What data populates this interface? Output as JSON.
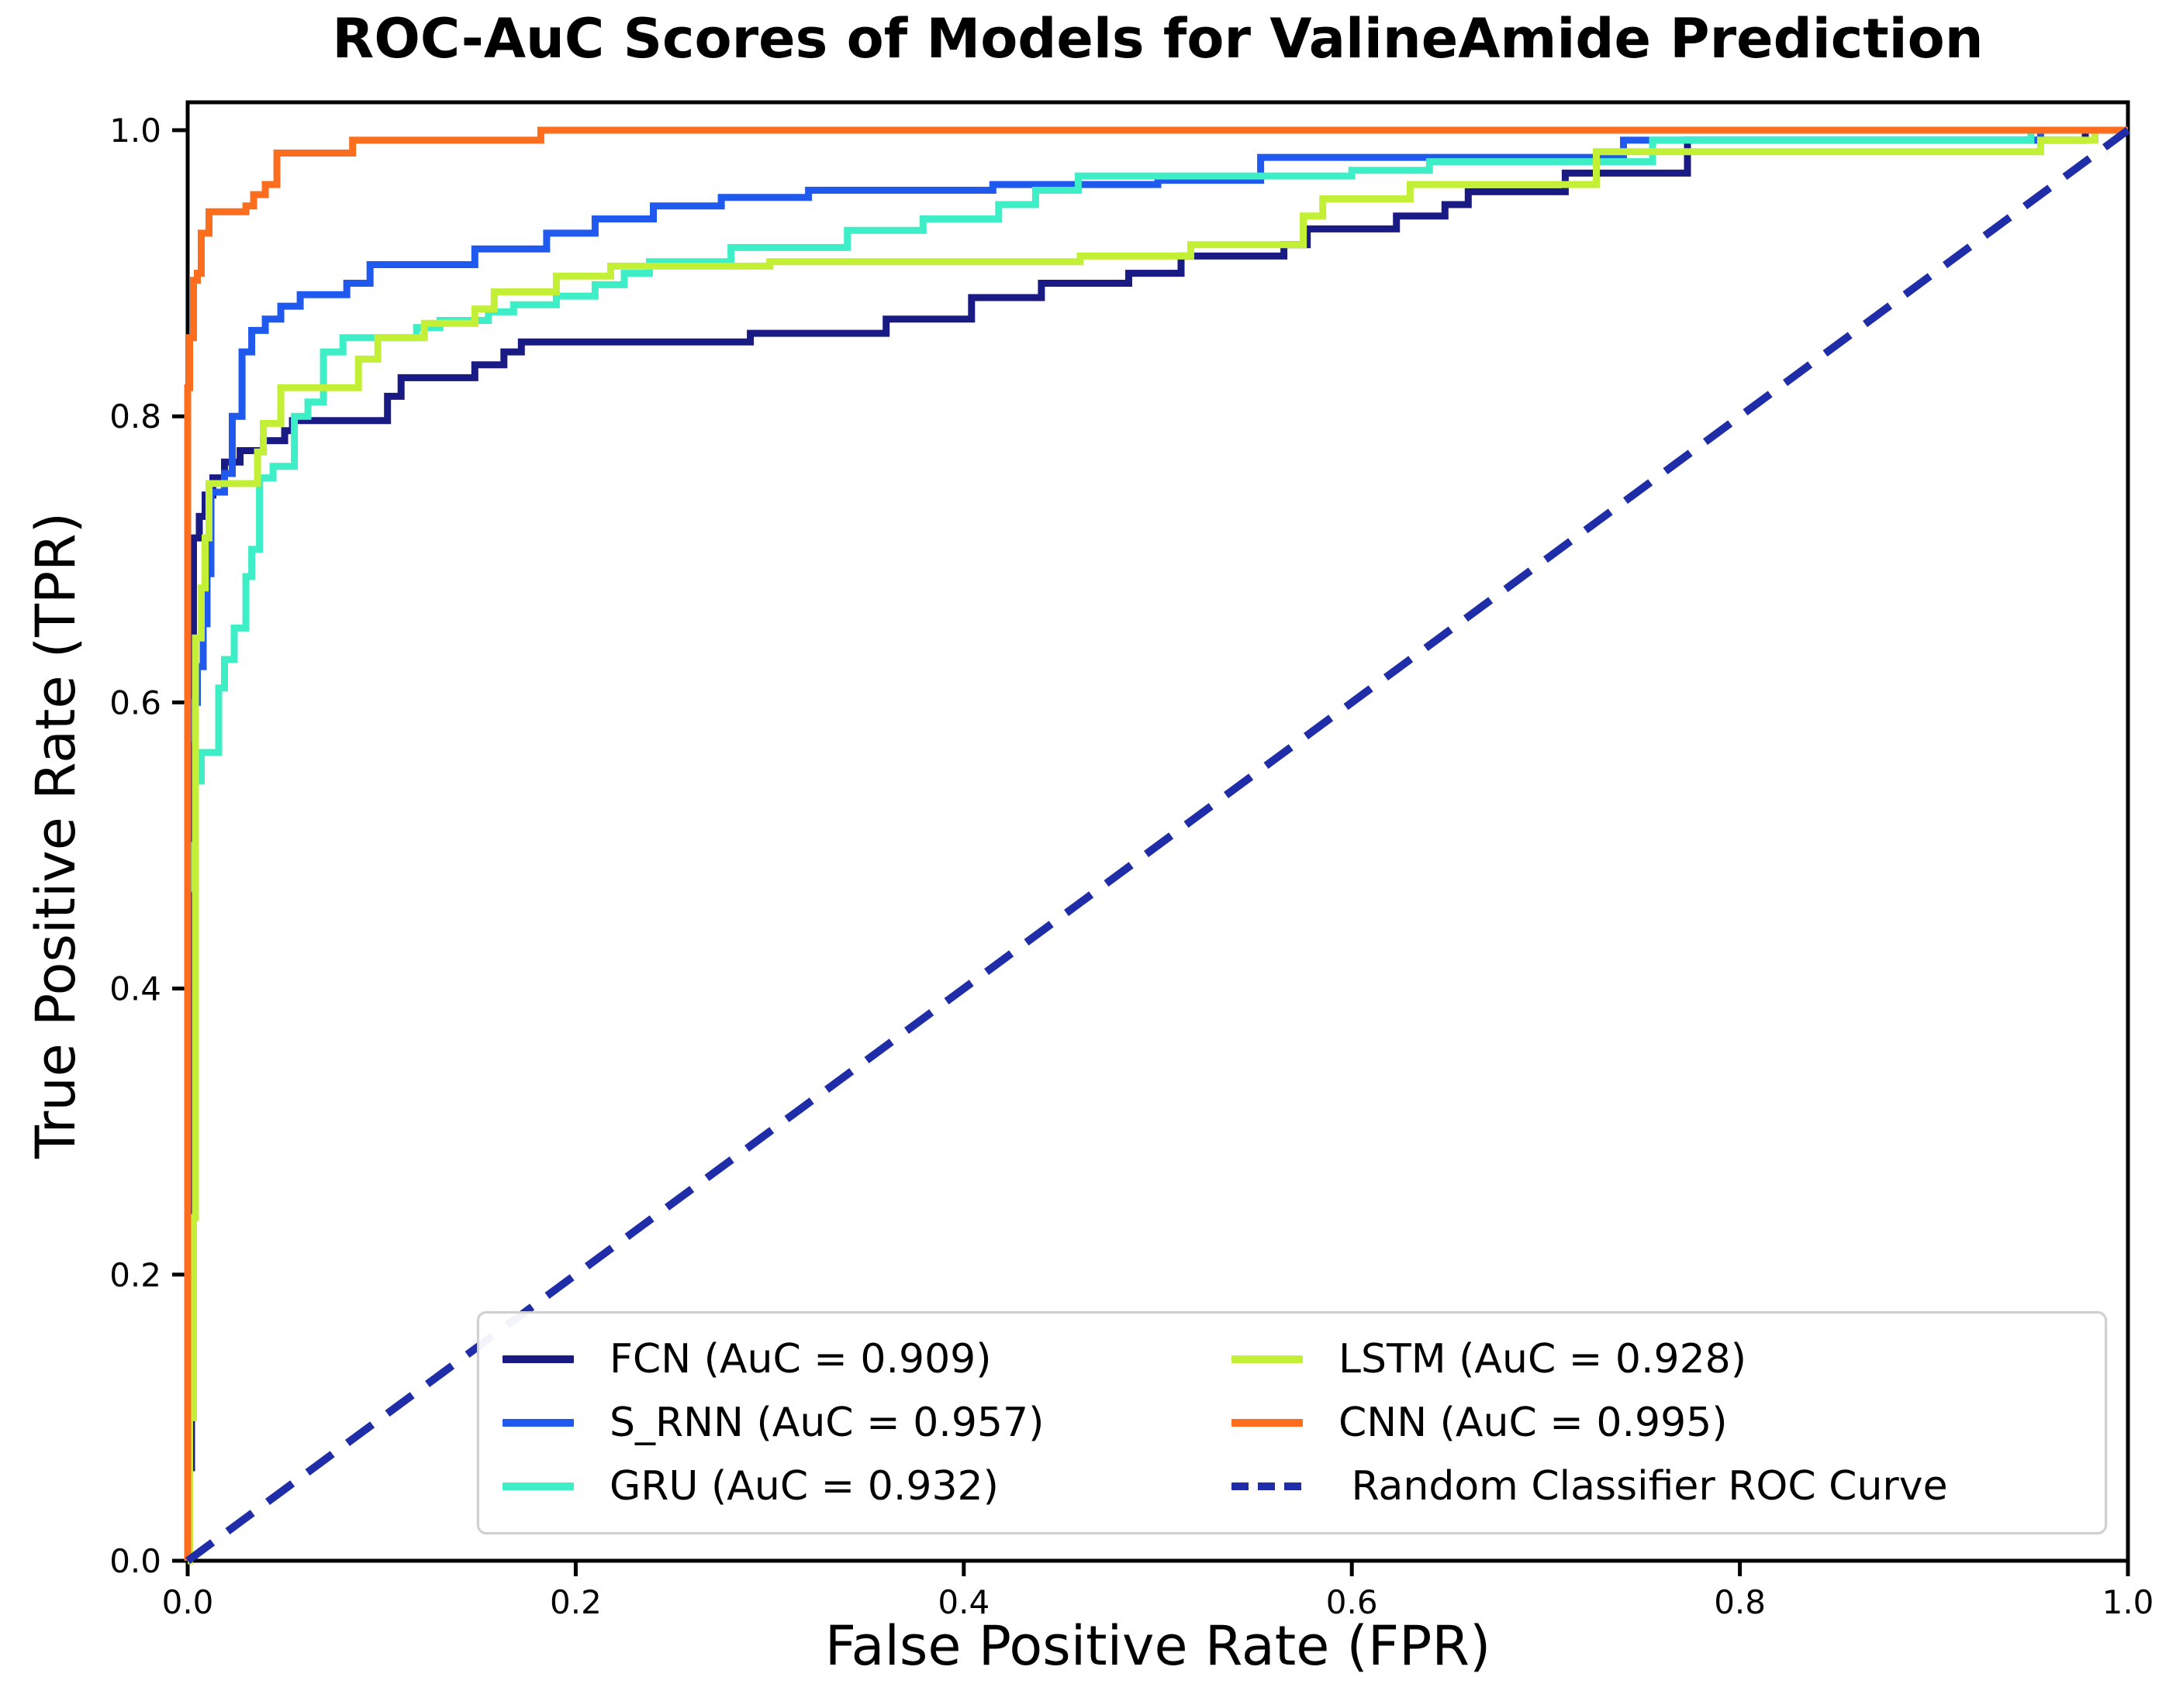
{
  "title": "ROC-AuC Scores of Models for ValineAmide Prediction",
  "axes": {
    "x_label": "False Positive Rate (FPR)",
    "y_label": "True Positive Rate (TPR)",
    "x_ticks": [
      "0.0",
      "0.2",
      "0.4",
      "0.6",
      "0.8",
      "1.0"
    ],
    "y_ticks": [
      "0.0",
      "0.2",
      "0.4",
      "0.6",
      "0.8",
      "1.0"
    ]
  },
  "chart_data": {
    "type": "line",
    "subtype": "roc-curves",
    "title": "ROC-AuC Scores of Models for ValineAmide Prediction",
    "xlabel": "False Positive Rate (FPR)",
    "ylabel": "True Positive Rate (TPR)",
    "xlim": [
      0,
      1
    ],
    "ylim": [
      0,
      1.02
    ],
    "grid": false,
    "legend_position": "lower right, two columns",
    "series": [
      {
        "name": "FCN",
        "auc": 0.909,
        "label": "FCN (AuC = 0.909)",
        "color": "#1a1a85",
        "dashed": false,
        "points": [
          [
            0,
            0
          ],
          [
            0,
            0.065
          ],
          [
            0.002,
            0.065
          ],
          [
            0.002,
            0.575
          ],
          [
            0.003,
            0.575
          ],
          [
            0.003,
            0.715
          ],
          [
            0.006,
            0.715
          ],
          [
            0.006,
            0.73
          ],
          [
            0.009,
            0.73
          ],
          [
            0.009,
            0.745
          ],
          [
            0.013,
            0.745
          ],
          [
            0.013,
            0.757
          ],
          [
            0.019,
            0.757
          ],
          [
            0.019,
            0.768
          ],
          [
            0.027,
            0.768
          ],
          [
            0.027,
            0.776
          ],
          [
            0.039,
            0.776
          ],
          [
            0.039,
            0.783
          ],
          [
            0.05,
            0.783
          ],
          [
            0.05,
            0.79
          ],
          [
            0.054,
            0.79
          ],
          [
            0.054,
            0.797
          ],
          [
            0.103,
            0.797
          ],
          [
            0.103,
            0.814
          ],
          [
            0.11,
            0.814
          ],
          [
            0.11,
            0.827
          ],
          [
            0.148,
            0.827
          ],
          [
            0.148,
            0.836
          ],
          [
            0.163,
            0.836
          ],
          [
            0.163,
            0.845
          ],
          [
            0.172,
            0.845
          ],
          [
            0.172,
            0.852
          ],
          [
            0.29,
            0.852
          ],
          [
            0.29,
            0.858
          ],
          [
            0.36,
            0.858
          ],
          [
            0.36,
            0.868
          ],
          [
            0.404,
            0.868
          ],
          [
            0.404,
            0.883
          ],
          [
            0.44,
            0.883
          ],
          [
            0.44,
            0.893
          ],
          [
            0.485,
            0.893
          ],
          [
            0.485,
            0.9
          ],
          [
            0.512,
            0.9
          ],
          [
            0.512,
            0.912
          ],
          [
            0.565,
            0.912
          ],
          [
            0.565,
            0.92
          ],
          [
            0.577,
            0.92
          ],
          [
            0.577,
            0.931
          ],
          [
            0.623,
            0.931
          ],
          [
            0.623,
            0.94
          ],
          [
            0.648,
            0.94
          ],
          [
            0.648,
            0.948
          ],
          [
            0.66,
            0.948
          ],
          [
            0.66,
            0.957
          ],
          [
            0.71,
            0.957
          ],
          [
            0.71,
            0.97
          ],
          [
            0.773,
            0.97
          ],
          [
            0.773,
            0.993
          ],
          [
            0.978,
            0.993
          ],
          [
            0.978,
            1
          ],
          [
            1,
            1
          ]
        ]
      },
      {
        "name": "S_RNN",
        "auc": 0.957,
        "label": "S_RNN (AuC = 0.957)",
        "color": "#2059ee",
        "dashed": false,
        "points": [
          [
            0,
            0
          ],
          [
            0,
            0.575
          ],
          [
            0.003,
            0.575
          ],
          [
            0.003,
            0.6
          ],
          [
            0.005,
            0.6
          ],
          [
            0.005,
            0.625
          ],
          [
            0.008,
            0.625
          ],
          [
            0.008,
            0.655
          ],
          [
            0.01,
            0.655
          ],
          [
            0.01,
            0.69
          ],
          [
            0.012,
            0.69
          ],
          [
            0.012,
            0.747
          ],
          [
            0.019,
            0.747
          ],
          [
            0.019,
            0.76
          ],
          [
            0.023,
            0.76
          ],
          [
            0.023,
            0.8
          ],
          [
            0.028,
            0.8
          ],
          [
            0.028,
            0.845
          ],
          [
            0.033,
            0.845
          ],
          [
            0.033,
            0.86
          ],
          [
            0.04,
            0.86
          ],
          [
            0.04,
            0.868
          ],
          [
            0.048,
            0.868
          ],
          [
            0.048,
            0.877
          ],
          [
            0.058,
            0.877
          ],
          [
            0.058,
            0.885
          ],
          [
            0.082,
            0.885
          ],
          [
            0.082,
            0.893
          ],
          [
            0.094,
            0.893
          ],
          [
            0.094,
            0.906
          ],
          [
            0.148,
            0.906
          ],
          [
            0.148,
            0.917
          ],
          [
            0.185,
            0.917
          ],
          [
            0.185,
            0.928
          ],
          [
            0.21,
            0.928
          ],
          [
            0.21,
            0.938
          ],
          [
            0.24,
            0.938
          ],
          [
            0.24,
            0.947
          ],
          [
            0.275,
            0.947
          ],
          [
            0.275,
            0.953
          ],
          [
            0.32,
            0.953
          ],
          [
            0.32,
            0.958
          ],
          [
            0.415,
            0.958
          ],
          [
            0.415,
            0.962
          ],
          [
            0.5,
            0.962
          ],
          [
            0.5,
            0.965
          ],
          [
            0.553,
            0.965
          ],
          [
            0.553,
            0.981
          ],
          [
            0.74,
            0.981
          ],
          [
            0.74,
            0.993
          ],
          [
            0.955,
            0.993
          ],
          [
            0.955,
            1
          ],
          [
            1,
            1
          ]
        ]
      },
      {
        "name": "GRU",
        "auc": 0.932,
        "label": "GRU (AuC = 0.932)",
        "color": "#3eeec6",
        "dashed": false,
        "points": [
          [
            0,
            0
          ],
          [
            0,
            0.47
          ],
          [
            0.002,
            0.47
          ],
          [
            0.002,
            0.5
          ],
          [
            0.004,
            0.5
          ],
          [
            0.004,
            0.545
          ],
          [
            0.007,
            0.545
          ],
          [
            0.007,
            0.565
          ],
          [
            0.016,
            0.565
          ],
          [
            0.016,
            0.61
          ],
          [
            0.019,
            0.61
          ],
          [
            0.019,
            0.63
          ],
          [
            0.024,
            0.63
          ],
          [
            0.024,
            0.652
          ],
          [
            0.03,
            0.652
          ],
          [
            0.03,
            0.688
          ],
          [
            0.033,
            0.688
          ],
          [
            0.033,
            0.707
          ],
          [
            0.037,
            0.707
          ],
          [
            0.037,
            0.757
          ],
          [
            0.044,
            0.757
          ],
          [
            0.044,
            0.765
          ],
          [
            0.055,
            0.765
          ],
          [
            0.055,
            0.8
          ],
          [
            0.062,
            0.8
          ],
          [
            0.062,
            0.81
          ],
          [
            0.07,
            0.81
          ],
          [
            0.07,
            0.845
          ],
          [
            0.08,
            0.845
          ],
          [
            0.08,
            0.855
          ],
          [
            0.118,
            0.855
          ],
          [
            0.118,
            0.862
          ],
          [
            0.13,
            0.862
          ],
          [
            0.13,
            0.867
          ],
          [
            0.155,
            0.867
          ],
          [
            0.155,
            0.873
          ],
          [
            0.168,
            0.873
          ],
          [
            0.168,
            0.878
          ],
          [
            0.19,
            0.878
          ],
          [
            0.19,
            0.884
          ],
          [
            0.21,
            0.884
          ],
          [
            0.21,
            0.892
          ],
          [
            0.225,
            0.892
          ],
          [
            0.225,
            0.9
          ],
          [
            0.238,
            0.9
          ],
          [
            0.238,
            0.908
          ],
          [
            0.28,
            0.908
          ],
          [
            0.28,
            0.918
          ],
          [
            0.34,
            0.918
          ],
          [
            0.34,
            0.93
          ],
          [
            0.379,
            0.93
          ],
          [
            0.379,
            0.938
          ],
          [
            0.418,
            0.938
          ],
          [
            0.418,
            0.948
          ],
          [
            0.437,
            0.948
          ],
          [
            0.437,
            0.958
          ],
          [
            0.459,
            0.958
          ],
          [
            0.459,
            0.968
          ],
          [
            0.6,
            0.968
          ],
          [
            0.6,
            0.972
          ],
          [
            0.64,
            0.972
          ],
          [
            0.64,
            0.978
          ],
          [
            0.755,
            0.978
          ],
          [
            0.755,
            0.993
          ],
          [
            0.95,
            0.993
          ],
          [
            0.95,
            1
          ],
          [
            1,
            1
          ]
        ]
      },
      {
        "name": "LSTM",
        "auc": 0.928,
        "label": "LSTM (AuC = 0.928)",
        "color": "#c3ef36",
        "dashed": false,
        "points": [
          [
            0,
            0
          ],
          [
            0.001,
            0
          ],
          [
            0.001,
            0.1
          ],
          [
            0.003,
            0.1
          ],
          [
            0.003,
            0.24
          ],
          [
            0.004,
            0.24
          ],
          [
            0.004,
            0.645
          ],
          [
            0.007,
            0.645
          ],
          [
            0.007,
            0.68
          ],
          [
            0.009,
            0.68
          ],
          [
            0.009,
            0.715
          ],
          [
            0.011,
            0.715
          ],
          [
            0.011,
            0.753
          ],
          [
            0.036,
            0.753
          ],
          [
            0.036,
            0.775
          ],
          [
            0.039,
            0.775
          ],
          [
            0.039,
            0.795
          ],
          [
            0.048,
            0.795
          ],
          [
            0.048,
            0.82
          ],
          [
            0.088,
            0.82
          ],
          [
            0.088,
            0.84
          ],
          [
            0.098,
            0.84
          ],
          [
            0.098,
            0.855
          ],
          [
            0.122,
            0.855
          ],
          [
            0.122,
            0.865
          ],
          [
            0.148,
            0.865
          ],
          [
            0.148,
            0.875
          ],
          [
            0.158,
            0.875
          ],
          [
            0.158,
            0.887
          ],
          [
            0.19,
            0.887
          ],
          [
            0.19,
            0.898
          ],
          [
            0.218,
            0.898
          ],
          [
            0.218,
            0.905
          ],
          [
            0.3,
            0.905
          ],
          [
            0.3,
            0.908
          ],
          [
            0.46,
            0.908
          ],
          [
            0.46,
            0.912
          ],
          [
            0.517,
            0.912
          ],
          [
            0.517,
            0.92
          ],
          [
            0.575,
            0.92
          ],
          [
            0.575,
            0.94
          ],
          [
            0.585,
            0.94
          ],
          [
            0.585,
            0.952
          ],
          [
            0.63,
            0.952
          ],
          [
            0.63,
            0.962
          ],
          [
            0.726,
            0.962
          ],
          [
            0.726,
            0.985
          ],
          [
            0.955,
            0.985
          ],
          [
            0.955,
            0.993
          ],
          [
            0.983,
            0.993
          ],
          [
            0.983,
            1
          ],
          [
            1,
            1
          ]
        ]
      },
      {
        "name": "CNN",
        "auc": 0.995,
        "label": "CNN (AuC = 0.995)",
        "color": "#fc6d1d",
        "dashed": false,
        "points": [
          [
            0,
            0
          ],
          [
            0,
            0.82
          ],
          [
            0.001,
            0.82
          ],
          [
            0.001,
            0.855
          ],
          [
            0.003,
            0.855
          ],
          [
            0.003,
            0.895
          ],
          [
            0.005,
            0.895
          ],
          [
            0.005,
            0.9
          ],
          [
            0.007,
            0.9
          ],
          [
            0.007,
            0.928
          ],
          [
            0.011,
            0.928
          ],
          [
            0.011,
            0.943
          ],
          [
            0.03,
            0.943
          ],
          [
            0.03,
            0.947
          ],
          [
            0.034,
            0.947
          ],
          [
            0.034,
            0.955
          ],
          [
            0.04,
            0.955
          ],
          [
            0.04,
            0.962
          ],
          [
            0.046,
            0.962
          ],
          [
            0.046,
            0.984
          ],
          [
            0.085,
            0.984
          ],
          [
            0.085,
            0.993
          ],
          [
            0.182,
            0.993
          ],
          [
            0.182,
            1
          ],
          [
            1,
            1
          ]
        ]
      },
      {
        "name": "Random Classifier",
        "auc": null,
        "label": " Random Classifier ROC Curve",
        "color": "#1f2da8",
        "dashed": true,
        "points": [
          [
            0,
            0
          ],
          [
            1,
            1
          ]
        ]
      }
    ]
  },
  "legend": {
    "columns": 2,
    "items": [
      {
        "label": "FCN (AuC = 0.909)"
      },
      {
        "label": "S_RNN (AuC = 0.957)"
      },
      {
        "label": "GRU (AuC = 0.932)"
      },
      {
        "label": "LSTM (AuC = 0.928)"
      },
      {
        "label": "CNN (AuC = 0.995)"
      },
      {
        "label": " Random Classifier ROC Curve"
      }
    ]
  }
}
